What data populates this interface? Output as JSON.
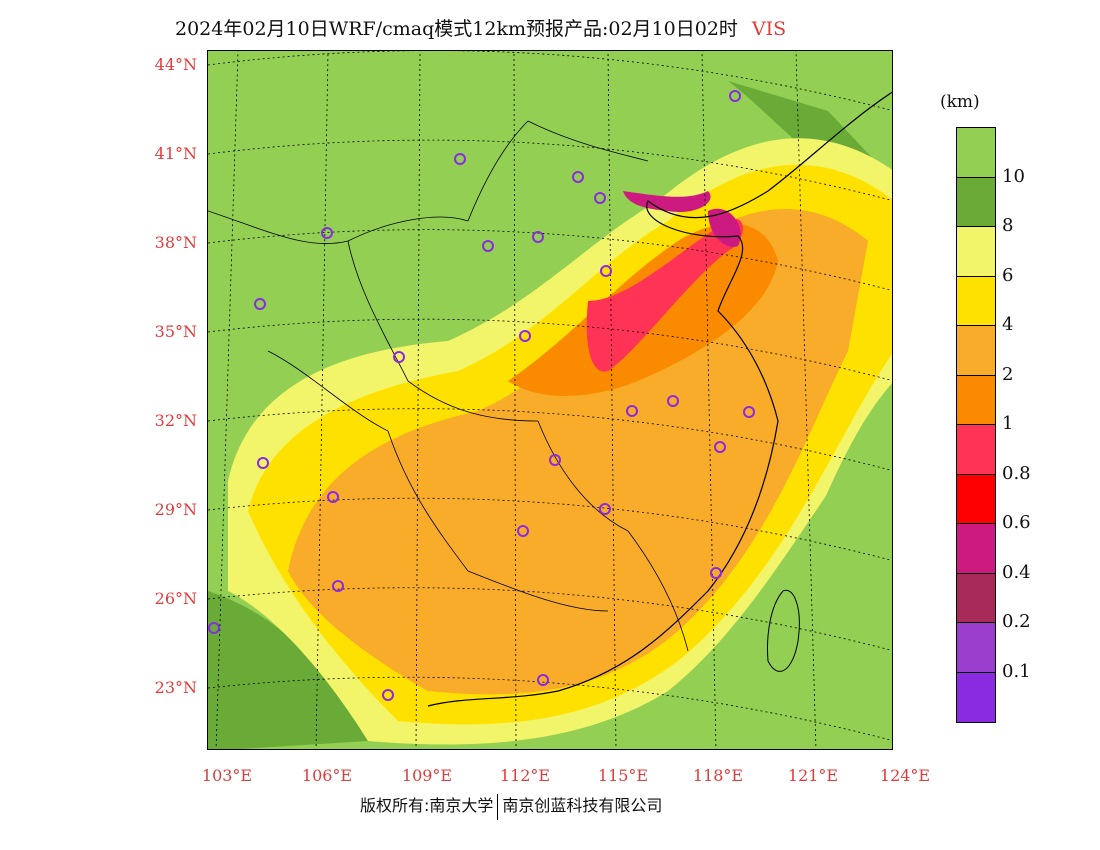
{
  "title": {
    "main": "2024年02月10日WRF/cmaq模式12km预报产品:02月10日02时",
    "variable": "VIS"
  },
  "map": {
    "lat_labels": [
      "44°N",
      "41°N",
      "38°N",
      "35°N",
      "32°N",
      "29°N",
      "26°N",
      "23°N"
    ],
    "lon_labels": [
      "103°E",
      "106°E",
      "109°E",
      "112°E",
      "115°E",
      "118°E",
      "121°E",
      "124°E"
    ]
  },
  "legend": {
    "unit": "(km)",
    "labels": [
      "10",
      "8",
      "6",
      "4",
      "2",
      "1",
      "0.8",
      "0.6",
      "0.4",
      "0.2",
      "0.1"
    ],
    "colors": [
      "#92cf52",
      "#6aab38",
      "#f2f56a",
      "#ffe100",
      "#f9ab2a",
      "#fa8a00",
      "#ff3355",
      "#ff0000",
      "#cc1a80",
      "#a82a58",
      "#9a3ccc",
      "#8a2be2"
    ]
  },
  "footer": {
    "left": "版权所有:南京大学",
    "right": "南京创蓝科技有限公司"
  }
}
